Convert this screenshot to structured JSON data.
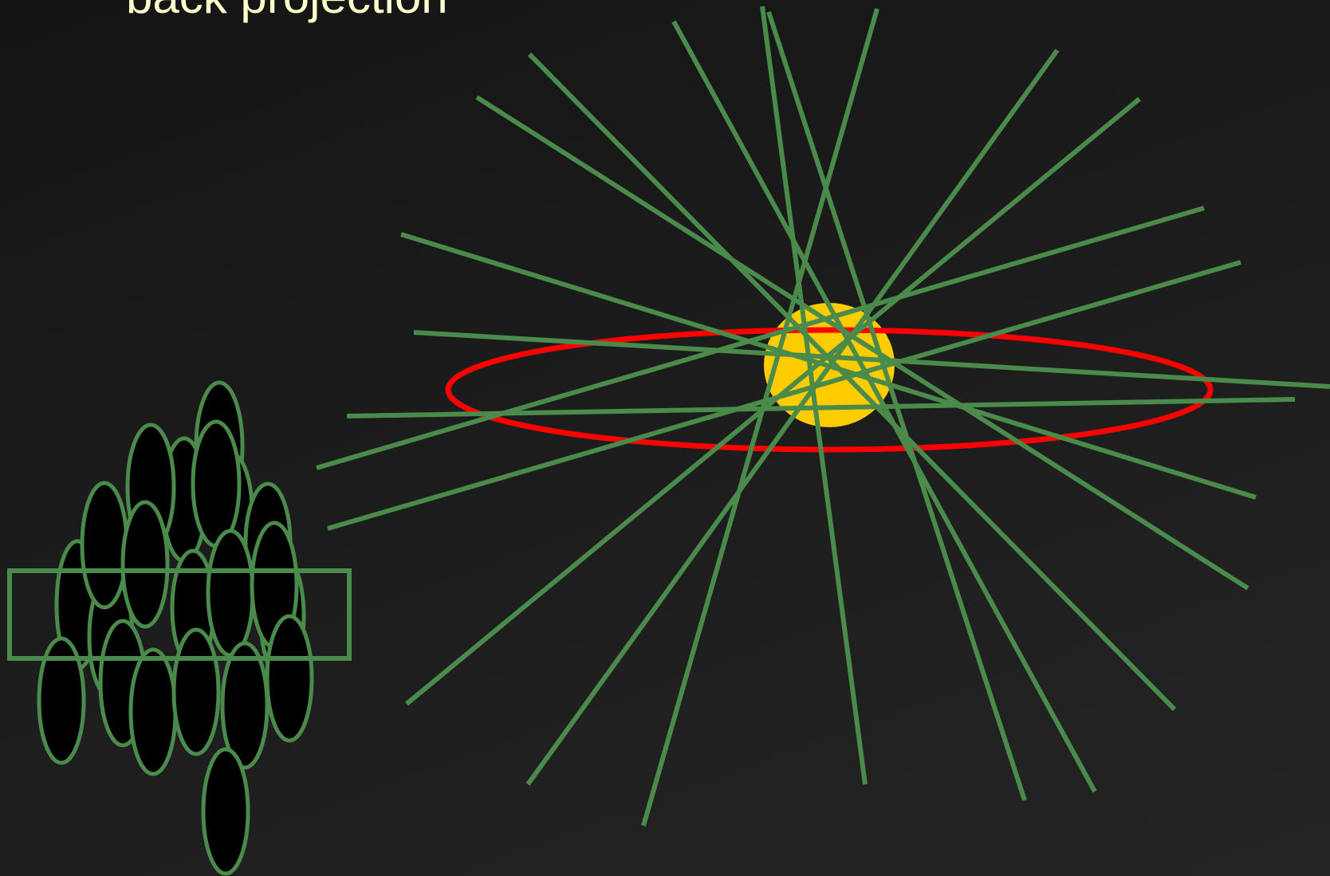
{
  "title": "back projection",
  "colors": {
    "background": "#1c1c1c",
    "title_text": "#ffffcc",
    "projection_line": "#4a8a4a",
    "ellipse_outline": "#ff0000",
    "object_fill": "#ffcc00",
    "detector_fill": "#000000"
  }
}
